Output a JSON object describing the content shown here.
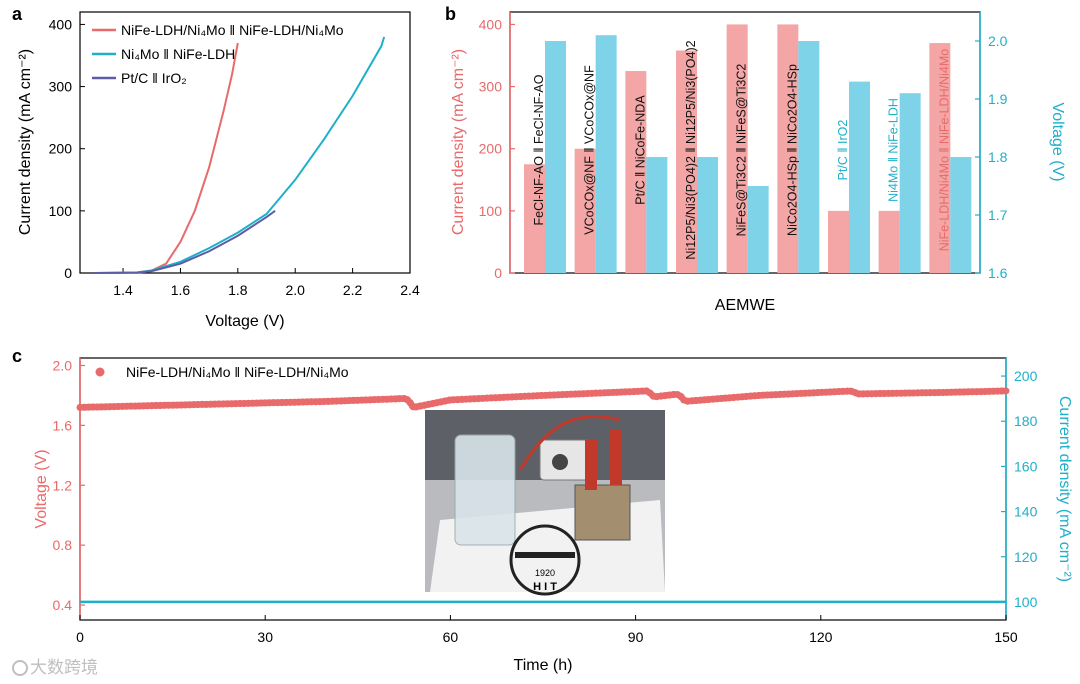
{
  "chart_data": [
    {
      "panel": "a",
      "type": "line",
      "xlabel": "Voltage (V)",
      "ylabel": "Current density (mA cm⁻²)",
      "xlim": [
        1.25,
        2.4
      ],
      "ylim": [
        0,
        420
      ],
      "xticks": [
        "1.4",
        "1.6",
        "1.8",
        "2.0",
        "2.2",
        "2.4"
      ],
      "yticks": [
        "0",
        "100",
        "200",
        "300",
        "400"
      ],
      "series": [
        {
          "name": "NiFe-LDH/Ni₄Mo ‖ NiFe-LDH/Ni₄Mo",
          "color": "#e86a6a",
          "x": [
            1.35,
            1.45,
            1.5,
            1.55,
            1.6,
            1.65,
            1.7,
            1.75,
            1.78,
            1.8
          ],
          "y": [
            0,
            1,
            4,
            15,
            50,
            100,
            170,
            260,
            320,
            370
          ]
        },
        {
          "name": "Ni₄Mo ‖ NiFe-LDH",
          "color": "#1fb0c9",
          "x": [
            1.3,
            1.45,
            1.5,
            1.6,
            1.7,
            1.8,
            1.9,
            2.0,
            2.1,
            2.2,
            2.3,
            2.31
          ],
          "y": [
            0,
            1,
            4,
            18,
            40,
            65,
            95,
            150,
            215,
            285,
            365,
            380
          ]
        },
        {
          "name": "Pt/C ‖ IrO₂",
          "color": "#5b5ea6",
          "x": [
            1.3,
            1.45,
            1.5,
            1.6,
            1.7,
            1.8,
            1.9,
            1.93
          ],
          "y": [
            0,
            0.5,
            3,
            15,
            35,
            60,
            90,
            100
          ]
        }
      ]
    },
    {
      "panel": "b",
      "type": "bar",
      "xlabel": "AEMWE",
      "ylabel": "Current density (mA cm⁻²)",
      "y2label": "Voltage (V)",
      "ylim": [
        0,
        420
      ],
      "y2lim": [
        1.6,
        2.05
      ],
      "yticks": [
        "0",
        "100",
        "200",
        "300",
        "400"
      ],
      "y2ticks": [
        "1.6",
        "1.7",
        "1.8",
        "1.9",
        "2.0"
      ],
      "categories": [
        "FeCl-NF-AO ‖ FeCl-NF-AO",
        "VCoCOx@NF ‖ VCoCOx@NF",
        "Pt/C ‖ NiCoFe-NDA",
        "Ni12P5/Ni3(PO4)2 ‖ Ni12P5/Ni3(PO4)2",
        "NiFeS@Ti3C2 ‖ NiFeS@Ti3C2",
        "NiCo2O4-HSp ‖ NiCo2O4-HSp",
        "Pt/C ‖ IrO2",
        "Ni4Mo ‖ NiFe-LDH",
        "NiFe-LDH/Ni4Mo ‖ NiFe-LDH/Ni4Mo"
      ],
      "series": [
        {
          "name": "Current density",
          "color": "#f4a5a5",
          "axis": "left",
          "values": [
            175,
            200,
            325,
            358,
            400,
            400,
            100,
            100,
            370
          ]
        },
        {
          "name": "Voltage",
          "color": "#7fd3e8",
          "axis": "right",
          "values": [
            2.0,
            2.01,
            1.8,
            1.8,
            1.75,
            2.0,
            1.93,
            1.91,
            1.8
          ]
        }
      ]
    },
    {
      "panel": "c",
      "type": "line",
      "xlabel": "Time (h)",
      "ylabel": "Voltage (V)",
      "y2label": "Current density (mA cm⁻²)",
      "xlim": [
        0,
        150
      ],
      "ylim": [
        0.3,
        2.05
      ],
      "y2lim": [
        92,
        208
      ],
      "xticks": [
        "0",
        "30",
        "60",
        "90",
        "120",
        "150"
      ],
      "yticks": [
        "0.4",
        "0.8",
        "1.2",
        "1.6",
        "2.0"
      ],
      "y2ticks": [
        "100",
        "120",
        "140",
        "160",
        "180",
        "200"
      ],
      "series": [
        {
          "name": "NiFe-LDH/Ni₄Mo ‖ NiFe-LDH/Ni₄Mo",
          "color": "#e86a6a",
          "axis": "left",
          "x": [
            0,
            20,
            40,
            53,
            54,
            60,
            75,
            92,
            93,
            97,
            98,
            110,
            125,
            126,
            140,
            150
          ],
          "y": [
            1.72,
            1.74,
            1.76,
            1.78,
            1.72,
            1.77,
            1.8,
            1.83,
            1.79,
            1.81,
            1.76,
            1.8,
            1.83,
            1.81,
            1.82,
            1.83
          ]
        },
        {
          "name": "Current density",
          "color": "#1fb0c9",
          "axis": "right",
          "x": [
            0,
            150
          ],
          "y": [
            100,
            100
          ]
        }
      ]
    }
  ],
  "panel_labels": {
    "a": "a",
    "b": "b",
    "c": "c"
  },
  "inset_photo": {
    "plate_year": "1920",
    "plate_letters": "H I T"
  },
  "watermark": "大数跨境"
}
